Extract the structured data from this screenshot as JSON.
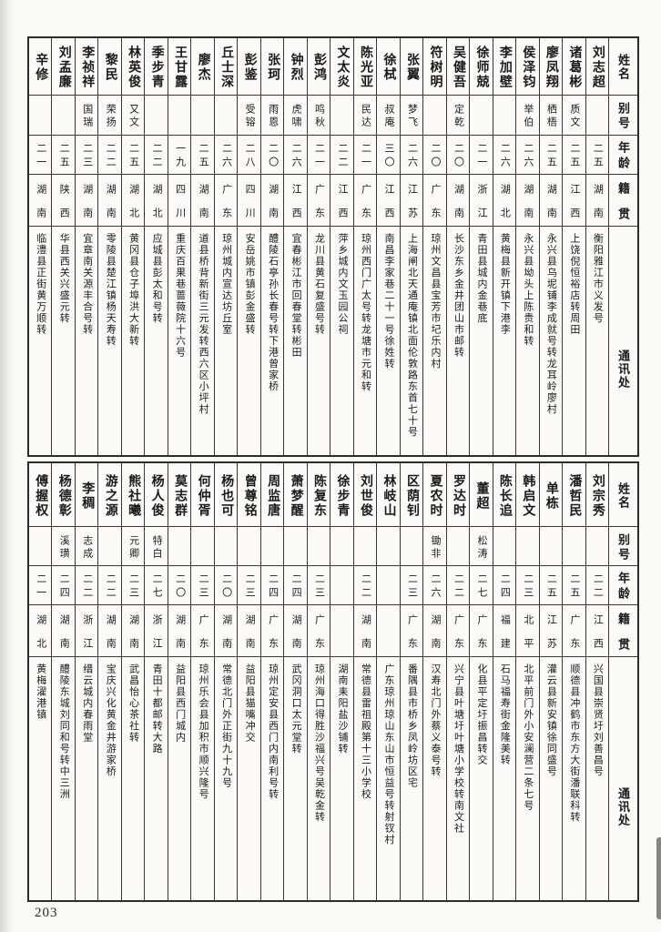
{
  "page": {
    "number": "203"
  },
  "headers": {
    "name": "姓名",
    "alias": "别号",
    "age": "年龄",
    "origin": "籍贯",
    "address": "通讯处"
  },
  "tables": {
    "top": {
      "persons": [
        {
          "name": "辛修",
          "alias": "",
          "age": "二一",
          "origin": "湖南",
          "address": "临澧县正街黄万顺转"
        },
        {
          "name": "刘孟廉",
          "alias": "",
          "age": "二五",
          "origin": "陕西",
          "address": "华县西关兴盛元转"
        },
        {
          "name": "李祯祥",
          "alias": "国瑞",
          "age": "二三",
          "origin": "湖南",
          "address": "宜章南关源丰合号转"
        },
        {
          "name": "黎民",
          "alias": "荣扬",
          "age": "二二",
          "origin": "湖南",
          "address": "零陵县楚江镇杨天寿转"
        },
        {
          "name": "林英俊",
          "alias": "又文",
          "age": "二五",
          "origin": "湖北",
          "address": "黄冈县仓子埠洪大新转"
        },
        {
          "name": "季步青",
          "alias": "",
          "age": "二二",
          "origin": "湖北",
          "address": "应城县彭太和号转"
        },
        {
          "name": "王甘露",
          "alias": "",
          "age": "一九",
          "origin": "四川",
          "address": "重庆百果巷蔷薇院十六号"
        },
        {
          "name": "廖杰",
          "alias": "",
          "age": "二五",
          "origin": "湖南",
          "address": "道县桥背新街三元发转西六区小坪村"
        },
        {
          "name": "丘士深",
          "alias": "",
          "age": "二六",
          "origin": "广东",
          "address": "琼州城内宣达坊丘室"
        },
        {
          "name": "彭鉴",
          "alias": "受镕",
          "age": "二八",
          "origin": "四川",
          "address": "安岳姚市镇彭金盛转"
        },
        {
          "name": "张珂",
          "alias": "雨恩",
          "age": "二〇",
          "origin": "湖南",
          "address": "醴陵石亭孙长春号转下港曾家桥"
        },
        {
          "name": "钟烈",
          "alias": "虎啸",
          "age": "二六",
          "origin": "江西",
          "address": "宜春彬江市回春堂转彬田"
        },
        {
          "name": "彭鸿",
          "alias": "鸣秋",
          "age": "二一",
          "origin": "广东",
          "address": "龙川县黄石复盛号转"
        },
        {
          "name": "文太炎",
          "alias": "",
          "age": "二二",
          "origin": "江西",
          "address": "萍乡城内文玉园公祠"
        },
        {
          "name": "陈光亚",
          "alias": "民达",
          "age": "二一",
          "origin": "广东",
          "address": "琼州西门广太号转龙塘市元和转"
        },
        {
          "name": "徐栻",
          "alias": "叔庵",
          "age": "三〇",
          "origin": "江西",
          "address": "南昌李家巷二十一号徐姓转"
        },
        {
          "name": "张翼",
          "alias": "梦飞",
          "age": "二六",
          "origin": "江苏",
          "address": "上海闸北天通庵镇北面伦敦路东首七十号"
        },
        {
          "name": "符树明",
          "alias": "",
          "age": "二〇",
          "origin": "广东",
          "address": "琼州文昌县宝芳市圮乐内村"
        },
        {
          "name": "吴健吾",
          "alias": "定乾",
          "age": "二〇",
          "origin": "湖南",
          "address": "长沙东乡金井团山市邮转"
        },
        {
          "name": "徐师兢",
          "alias": "",
          "age": "二一",
          "origin": "浙江",
          "address": "青田县城内金巷底"
        },
        {
          "name": "李加壁",
          "alias": "",
          "age": "二六",
          "origin": "湖北",
          "address": "黄梅县新开镇下港李"
        },
        {
          "name": "侯泽钧",
          "alias": "举伯",
          "age": "二六",
          "origin": "湖南",
          "address": "永兴县坳头上陈贵和转"
        },
        {
          "name": "廖凤翔",
          "alias": "栖梧",
          "age": "二五",
          "origin": "湖南",
          "address": "永兴县乌坭铺李成就号转龙耳岭廖村"
        },
        {
          "name": "诸葛彬",
          "alias": "质文",
          "age": "二五",
          "origin": "江西",
          "address": "上饶倪恒裕店转周田"
        },
        {
          "name": "刘志超",
          "alias": "",
          "age": "二五",
          "origin": "湖南",
          "address": "衡阳雅江市义发号"
        }
      ]
    },
    "bottom": {
      "persons": [
        {
          "name": "傅握权",
          "alias": "",
          "age": "二一",
          "origin": "湖北",
          "address": "黄梅濯港镇"
        },
        {
          "name": "杨德彰",
          "alias": "溪璜",
          "age": "二四",
          "origin": "湖南",
          "address": "醴陵东城刘同和号转中三洲"
        },
        {
          "name": "李稠",
          "alias": "志成",
          "age": "二二",
          "origin": "浙江",
          "address": "缙云城内春雨堂"
        },
        {
          "name": "游之源",
          "alias": "",
          "age": "二二",
          "origin": "湖南",
          "address": "宝庆兴化黄金井游家桥"
        },
        {
          "name": "熊社曦",
          "alias": "元卿",
          "age": "二三",
          "origin": "湖南",
          "address": "武昌怡心茶社转"
        },
        {
          "name": "杨人俊",
          "alias": "特白",
          "age": "二七",
          "origin": "浙江",
          "address": "青田十都邮转大路"
        },
        {
          "name": "莫志群",
          "alias": "",
          "age": "二〇",
          "origin": "湖南",
          "address": "益阳县西门城内"
        },
        {
          "name": "何仲胥",
          "alias": "",
          "age": "二三",
          "origin": "广东",
          "address": "琼州乐会县加积市顺兴隆号"
        },
        {
          "name": "杨也可",
          "alias": "",
          "age": "二〇",
          "origin": "湖南",
          "address": "常德北门外正街九十九号"
        },
        {
          "name": "曾尊铭",
          "alias": "",
          "age": "二三",
          "origin": "湖南",
          "address": "益阳县猫嘴冲交"
        },
        {
          "name": "周监唐",
          "alias": "",
          "age": "二四",
          "origin": "广东",
          "address": "琼州定安县西门内南利号转"
        },
        {
          "name": "萧梦醒",
          "alias": "",
          "age": "二四",
          "origin": "湖南",
          "address": "武冈洞口太元堂转"
        },
        {
          "name": "陈复东",
          "alias": "",
          "age": "二三",
          "origin": "广东",
          "address": "琼州海口得胜沙福兴号吴乾金转"
        },
        {
          "name": "徐步青",
          "alias": "",
          "age": "",
          "origin": "",
          "address": "湖南耒阳盐沙铺转"
        },
        {
          "name": "刘世俊",
          "alias": "",
          "age": "二二",
          "origin": "湖南",
          "address": "常德县雷祖殿第十三小学校"
        },
        {
          "name": "林岐山",
          "alias": "",
          "age": "",
          "origin": "",
          "address": "广东琼州琼山东山市恒益号转射钗村"
        },
        {
          "name": "区荫钊",
          "alias": "",
          "age": "二三",
          "origin": "广东",
          "address": "番隅县市桥乡凤岭坊区宅"
        },
        {
          "name": "夏农时",
          "alias": "锄非",
          "age": "二六",
          "origin": "湖南",
          "address": "汉寿北门外蔡义泰号转"
        },
        {
          "name": "罗达时",
          "alias": "",
          "age": "二二",
          "origin": "广东",
          "address": "兴宁县叶塘圩叶塘小学校转南文社"
        },
        {
          "name": "董超",
          "alias": "松涛",
          "age": "二七",
          "origin": "广东",
          "address": "化县平定圩振昌转交"
        },
        {
          "name": "陈长追",
          "alias": "",
          "age": "二四",
          "origin": "福建",
          "address": "石马福寿街金隆美转"
        },
        {
          "name": "韩启文",
          "alias": "",
          "age": "二三",
          "origin": "北平",
          "address": "北平前门外小安澜营二条七号"
        },
        {
          "name": "单栋",
          "alias": "",
          "age": "二五",
          "origin": "江苏",
          "address": "灌云县新安镇徐同盛号"
        },
        {
          "name": "潘哲民",
          "alias": "",
          "age": "二五",
          "origin": "广东",
          "address": "顺德县冲鹤市东方大街潘联科转"
        },
        {
          "name": "刘宗秀",
          "alias": "",
          "age": "二二",
          "origin": "江西",
          "address": "兴国县崇贤圩刘善昌号"
        }
      ]
    }
  }
}
